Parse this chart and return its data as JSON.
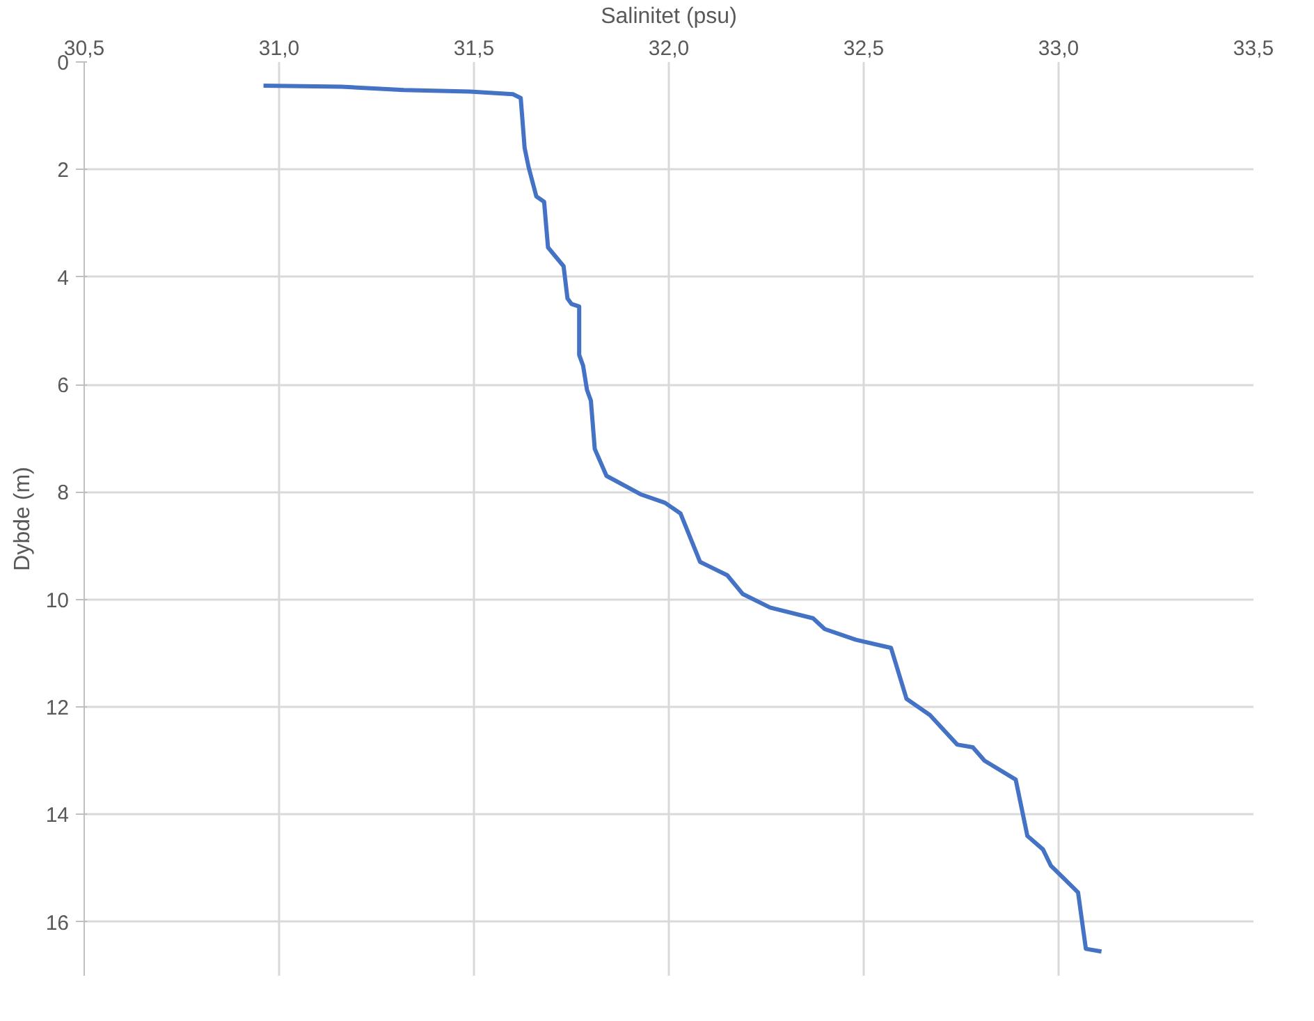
{
  "chart_data": {
    "type": "line",
    "xlabel": "Salinitet (psu)",
    "ylabel": "Dybde (m)",
    "xlim": [
      30.5,
      33.5
    ],
    "xticks": [
      {
        "value": 30.5,
        "label": "30,5"
      },
      {
        "value": 31.0,
        "label": "31,0"
      },
      {
        "value": 31.5,
        "label": "31,5"
      },
      {
        "value": 32.0,
        "label": "32,0"
      },
      {
        "value": 32.5,
        "label": "32,5"
      },
      {
        "value": 33.0,
        "label": "33,0"
      },
      {
        "value": 33.5,
        "label": "33,5"
      }
    ],
    "ylim": [
      17,
      0
    ],
    "yticks": [
      0,
      2,
      4,
      6,
      8,
      10,
      12,
      14,
      16
    ],
    "grid": true,
    "line_style": "solid",
    "series": [
      {
        "color": "#4472c4",
        "x": [
          30.96,
          31.16,
          31.32,
          31.49,
          31.6,
          31.62,
          31.63,
          31.64,
          31.66,
          31.68,
          31.69,
          31.73,
          31.74,
          31.75,
          31.77,
          31.77,
          31.78,
          31.79,
          31.8,
          31.81,
          31.84,
          31.93,
          31.99,
          32.03,
          32.08,
          32.15,
          32.19,
          32.26,
          32.37,
          32.4,
          32.48,
          32.57,
          32.61,
          32.67,
          32.74,
          32.78,
          32.81,
          32.89,
          32.92,
          32.96,
          32.98,
          33.05,
          33.07,
          33.11
        ],
        "values": [
          0.44,
          0.46,
          0.52,
          0.55,
          0.6,
          0.67,
          1.6,
          1.95,
          2.5,
          2.6,
          3.45,
          3.8,
          4.4,
          4.5,
          4.55,
          5.45,
          5.65,
          6.1,
          6.3,
          7.2,
          7.7,
          8.05,
          8.2,
          8.4,
          9.3,
          9.55,
          9.9,
          10.15,
          10.35,
          10.55,
          10.75,
          10.9,
          11.85,
          12.15,
          12.7,
          12.75,
          13.0,
          13.35,
          14.4,
          14.65,
          14.95,
          15.45,
          16.5,
          16.55
        ]
      }
    ]
  }
}
